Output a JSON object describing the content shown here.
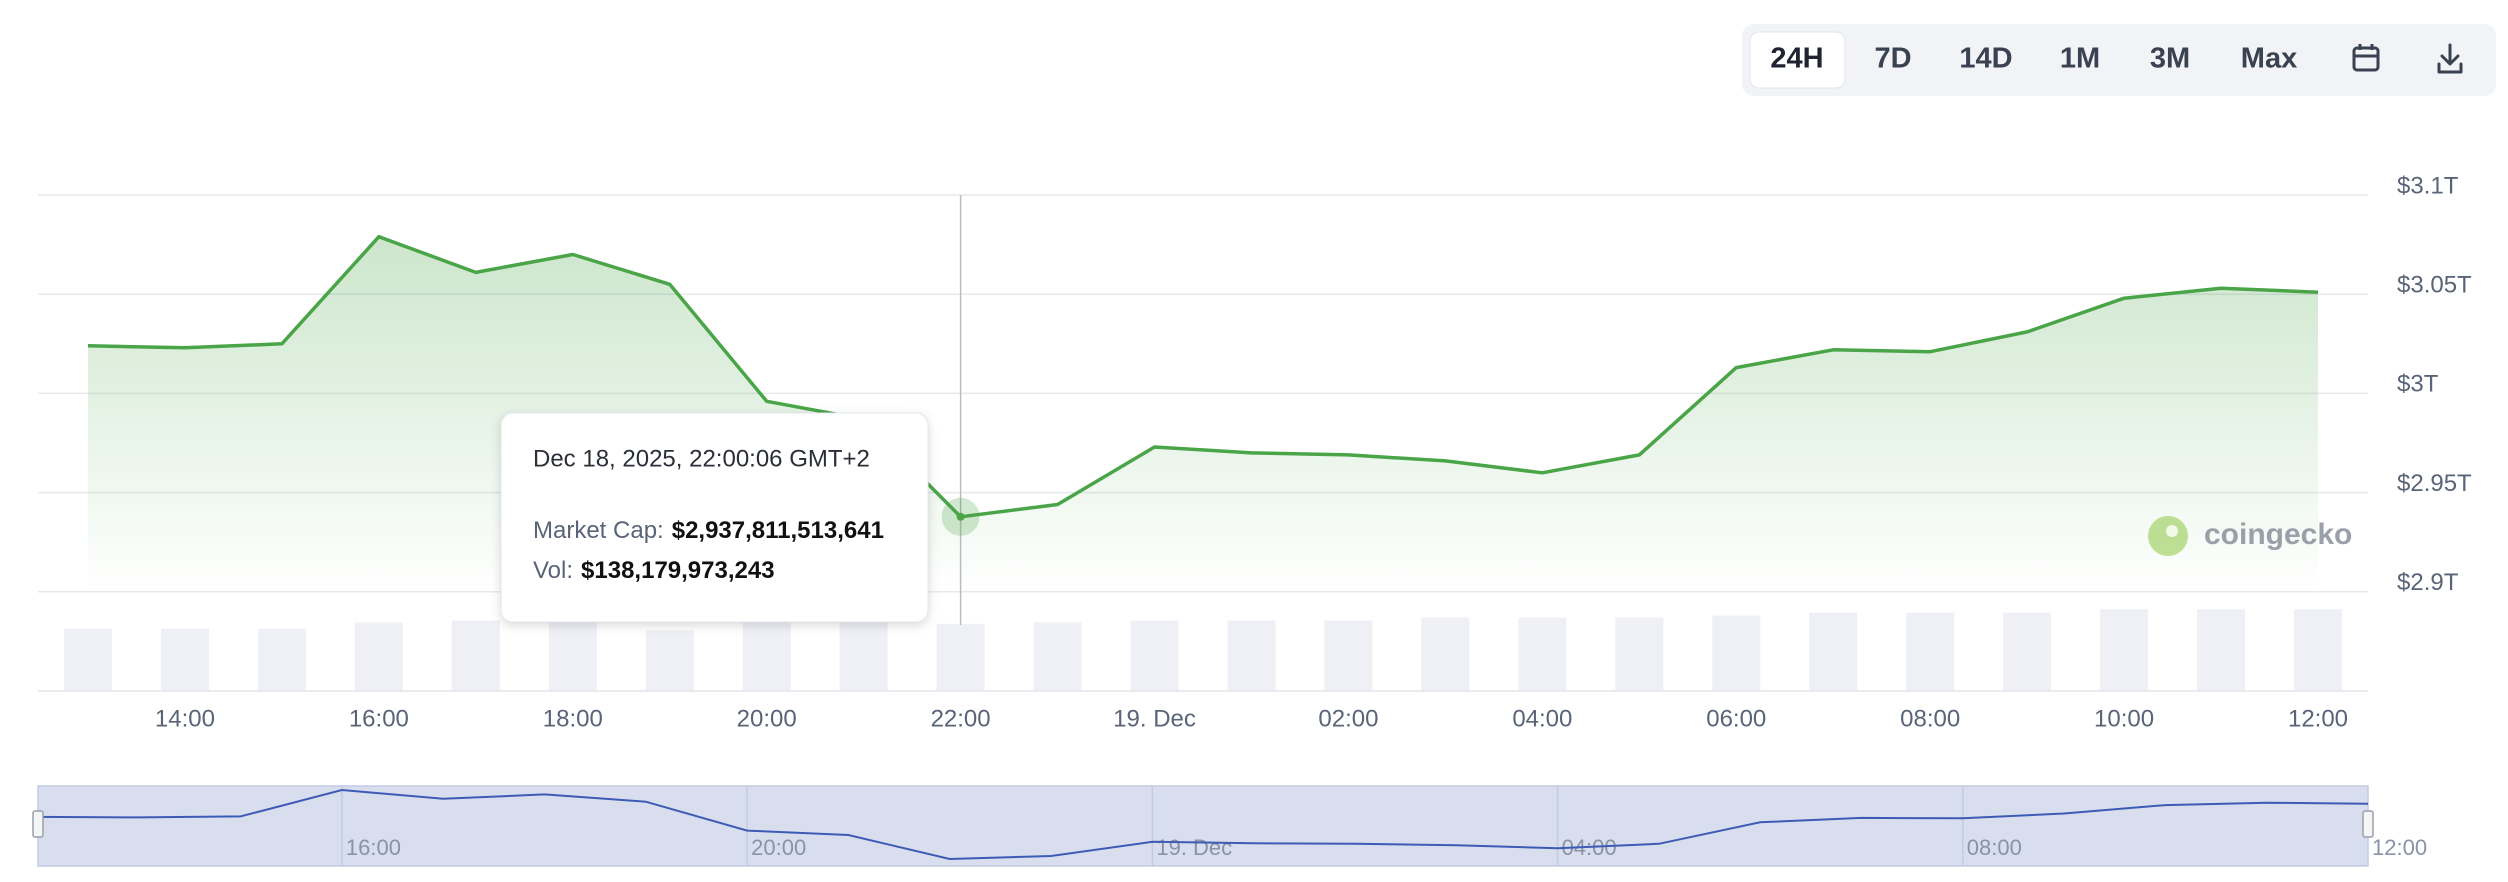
{
  "chart_data": {
    "type": "line",
    "range_buttons": [
      "24H",
      "7D",
      "14D",
      "1M",
      "3M",
      "Max"
    ],
    "watermark": "coingecko",
    "categories": [
      null,
      "14:00",
      null,
      "16:00",
      null,
      "18:00",
      null,
      "20:00",
      null,
      "22:00",
      null,
      "19. Dec",
      null,
      "02:00",
      null,
      "04:00",
      null,
      "06:00",
      null,
      "08:00",
      null,
      "10:00",
      null,
      "12:00"
    ],
    "series": [
      {
        "name": "Market Cap:",
        "color": "#4aa548",
        "values": [
          3.024,
          3.023,
          3.025,
          3.079,
          3.061,
          3.07,
          3.055,
          2.996,
          2.987,
          2.937811513641,
          2.944,
          2.973,
          2.97,
          2.969,
          2.966,
          2.96,
          2.969,
          3.013,
          3.022,
          3.021,
          3.031,
          3.048,
          3.053,
          3.051
        ]
      },
      {
        "name": "Vol:",
        "color": "#eef0f5",
        "axis": "y2",
        "values": [
          128000000000,
          128000000000,
          128000000000,
          141000000000,
          145000000000,
          141000000000,
          125000000000,
          141000000000,
          141000000000,
          138179973243,
          141000000000,
          145000000000,
          145000000000,
          145000000000,
          151000000000,
          151000000000,
          151000000000,
          155000000000,
          161000000000,
          161000000000,
          161000000000,
          168000000000,
          168000000000,
          168000000000
        ]
      }
    ],
    "ylim": [
      2.85,
      3.1
    ],
    "yticks": [
      {
        "value": 2.9,
        "label": "$2.9T"
      },
      {
        "value": 2.95,
        "label": "$2.95T"
      },
      {
        "value": 3,
        "label": "$3T"
      },
      {
        "value": 3.05,
        "label": "$3.05T"
      },
      {
        "value": 3.1,
        "label": "$3.1T"
      }
    ],
    "y2lim": [
      0,
      1020000000000
    ],
    "grid": true,
    "tooltip": {
      "title": "Dec 18, 2025, 22:00:06 GMT+2",
      "market_cap": "$2,937,811,513,641",
      "volume": "$138,179,973,243"
    }
  }
}
